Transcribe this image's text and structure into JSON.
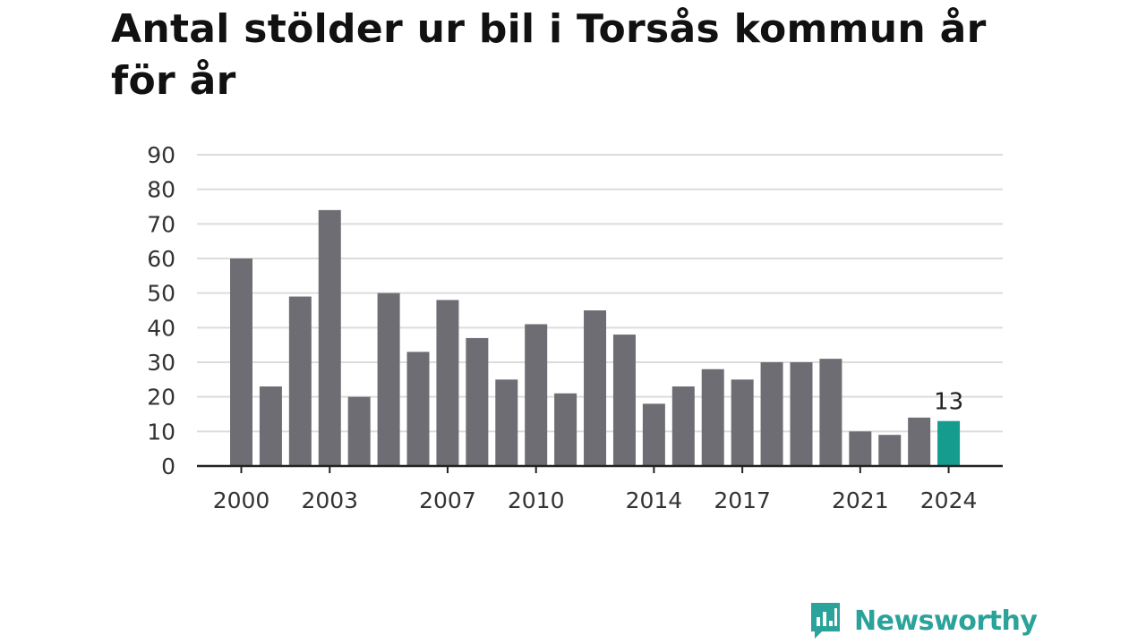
{
  "chart_data": {
    "type": "bar",
    "title": "Antal stölder ur bil i Torsås kommun år för år",
    "xlabel": "",
    "ylabel": "",
    "categories": [
      "2000",
      "2001",
      "2002",
      "2003",
      "2004",
      "2005",
      "2006",
      "2007",
      "2008",
      "2009",
      "2010",
      "2011",
      "2012",
      "2013",
      "2014",
      "2015",
      "2016",
      "2017",
      "2018",
      "2019",
      "2020",
      "2021",
      "2022",
      "2023",
      "2024"
    ],
    "values": [
      60,
      23,
      49,
      74,
      20,
      50,
      33,
      48,
      37,
      25,
      41,
      21,
      45,
      38,
      18,
      23,
      28,
      25,
      30,
      30,
      31,
      10,
      9,
      14,
      13
    ],
    "ylim": [
      0,
      90
    ],
    "yticks": [
      "0",
      "10",
      "20",
      "30",
      "40",
      "50",
      "60",
      "70",
      "80",
      "90"
    ],
    "xticks": [
      "2000",
      "2003",
      "2007",
      "2010",
      "2014",
      "2017",
      "2021",
      "2024"
    ],
    "highlight": {
      "category": "2024",
      "label": "13"
    },
    "grid": true,
    "colors": {
      "bar": "#6e6d73",
      "highlight": "#159c8f",
      "grid": "#dcdcdc",
      "axis": "#222222"
    }
  },
  "brand": {
    "name": "Newsworthy",
    "color": "#2ba39a",
    "icon": "bar-chart-speech-bubble-icon"
  }
}
